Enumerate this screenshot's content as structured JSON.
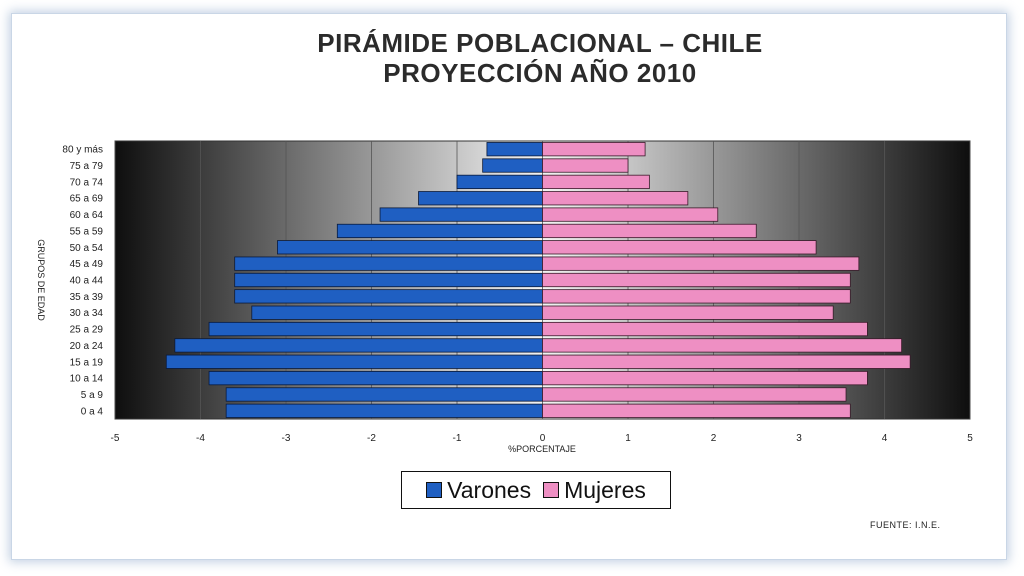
{
  "title": {
    "line1": "PIRÁMIDE POBLACIONAL – CHILE",
    "line2": "PROYECCIÓN AÑO 2010"
  },
  "source": "FUENTE: I.N.E.",
  "colors": {
    "varones": "#1f5fc2",
    "mujeres": "#ee8fc3"
  },
  "chart_data": {
    "type": "bar",
    "orientation": "horizontal",
    "title": "PIRÁMIDE POBLACIONAL – CHILE PROYECCIÓN AÑO 2010",
    "xlabel": "%PORCENTAJE",
    "ylabel": "GRUPOS DE EDAD",
    "xlim": [
      -5,
      5
    ],
    "xticks": [
      "-5",
      "-4",
      "-3",
      "-2",
      "-1",
      "0",
      "1",
      "2",
      "3",
      "4",
      "5"
    ],
    "grid": true,
    "legend_position": "bottom",
    "categories": [
      "0 a 4",
      "5 a 9",
      "10 a 14",
      "15 a 19",
      "20 a 24",
      "25 a 29",
      "30 a 34",
      "35 a 39",
      "40 a 44",
      "45 a 49",
      "50 a 54",
      "55 a 59",
      "60 a 64",
      "65 a 69",
      "70 a 74",
      "75 a 79",
      "80 y más"
    ],
    "series": [
      {
        "name": "Varones",
        "values": [
          -3.7,
          -3.7,
          -3.9,
          -4.4,
          -4.3,
          -3.9,
          -3.4,
          -3.6,
          -3.6,
          -3.6,
          -3.1,
          -2.4,
          -1.9,
          -1.45,
          -1.0,
          -0.7,
          -0.65
        ]
      },
      {
        "name": "Mujeres",
        "values": [
          3.6,
          3.55,
          3.8,
          4.3,
          4.2,
          3.8,
          3.4,
          3.6,
          3.6,
          3.7,
          3.2,
          2.5,
          2.05,
          1.7,
          1.25,
          1.0,
          1.2
        ]
      }
    ]
  }
}
